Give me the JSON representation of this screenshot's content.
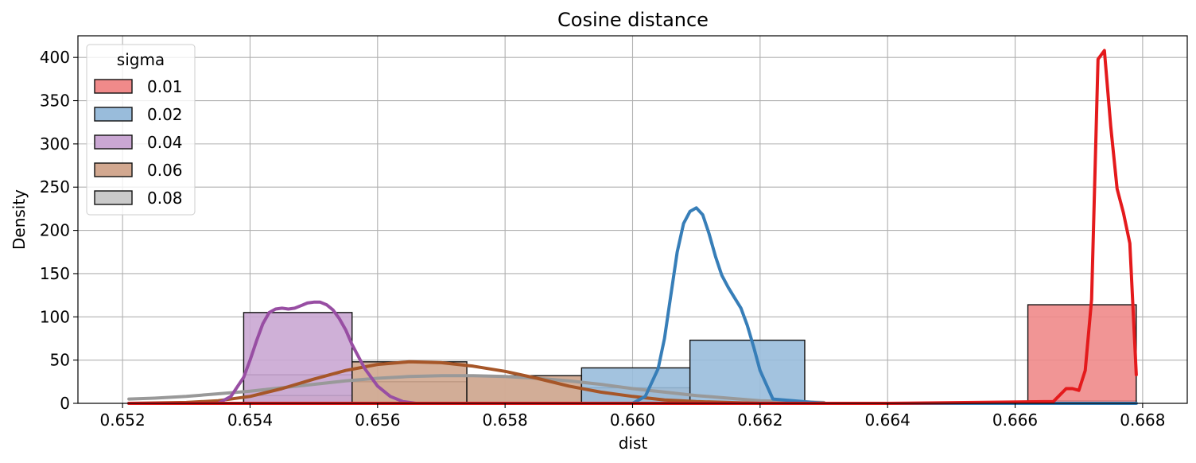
{
  "chart_data": {
    "type": "histogram",
    "title": "Cosine distance",
    "xlabel": "dist",
    "ylabel": "Density",
    "xlim": [
      0.6513,
      0.6687
    ],
    "ylim": [
      0,
      425
    ],
    "xticks": [
      0.652,
      0.654,
      0.656,
      0.658,
      0.66,
      0.662,
      0.664,
      0.666,
      0.668
    ],
    "xtick_labels": [
      "0.652",
      "0.654",
      "0.656",
      "0.658",
      "0.660",
      "0.662",
      "0.664",
      "0.666",
      "0.668"
    ],
    "yticks": [
      0,
      50,
      100,
      150,
      200,
      250,
      300,
      350,
      400
    ],
    "ytick_labels": [
      "0",
      "50",
      "100",
      "150",
      "200",
      "250",
      "300",
      "350",
      "400"
    ],
    "grid": true,
    "legend": {
      "title": "sigma",
      "placement": "upper-left"
    },
    "series": [
      {
        "name": "0.01",
        "fill_color": "#f08a8a",
        "line_color": "#e41a1c",
        "bins": [
          {
            "x0": 0.6662,
            "x1": 0.6679,
            "density": 114
          }
        ],
        "kde": {
          "x": [
            0.6521,
            0.664,
            0.6666,
            0.6668,
            0.6669,
            0.667,
            0.6671,
            0.6672,
            0.6673,
            0.6674,
            0.6675,
            0.6676,
            0.6677,
            0.6678,
            0.6679
          ],
          "y": [
            0,
            0,
            2,
            17,
            17,
            15,
            38,
            120,
            398,
            408,
            320,
            248,
            220,
            185,
            33
          ]
        }
      },
      {
        "name": "0.02",
        "fill_color": "#99bcdb",
        "line_color": "#377eb8",
        "bins": [
          {
            "x0": 0.6592,
            "x1": 0.6609,
            "density": 41
          },
          {
            "x0": 0.6609,
            "x1": 0.6627,
            "density": 73
          },
          {
            "x0": 0.6662,
            "x1": 0.6679,
            "density": 3
          }
        ],
        "kde": {
          "x": [
            0.6521,
            0.66,
            0.6602,
            0.6604,
            0.6605,
            0.6606,
            0.6607,
            0.6608,
            0.6609,
            0.661,
            0.6611,
            0.6612,
            0.6613,
            0.6614,
            0.6615,
            0.6616,
            0.6617,
            0.6618,
            0.6619,
            0.662,
            0.6622,
            0.663,
            0.6679
          ],
          "y": [
            0,
            0,
            8,
            40,
            75,
            125,
            175,
            208,
            222,
            226,
            218,
            196,
            170,
            148,
            134,
            122,
            110,
            90,
            65,
            38,
            5,
            0,
            0
          ]
        }
      },
      {
        "name": "0.04",
        "fill_color": "#caa7d3",
        "line_color": "#984ea3",
        "bins": [
          {
            "x0": 0.6539,
            "x1": 0.6556,
            "density": 105
          }
        ],
        "kde": {
          "x": [
            0.6521,
            0.6535,
            0.6537,
            0.6539,
            0.654,
            0.6541,
            0.6542,
            0.6543,
            0.6544,
            0.6545,
            0.6546,
            0.6547,
            0.6548,
            0.6549,
            0.655,
            0.6551,
            0.6552,
            0.6553,
            0.6554,
            0.6555,
            0.6556,
            0.6558,
            0.656,
            0.6562,
            0.6564,
            0.6566,
            0.657
          ],
          "y": [
            0,
            0,
            8,
            30,
            50,
            72,
            92,
            105,
            109,
            110,
            109,
            110,
            113,
            116,
            117,
            117,
            114,
            108,
            98,
            85,
            68,
            40,
            20,
            8,
            2,
            0,
            0
          ]
        }
      },
      {
        "name": "0.06",
        "fill_color": "#d2a890",
        "line_color": "#a65628",
        "bins": [
          {
            "x0": 0.6539,
            "x1": 0.6556,
            "density": 9
          },
          {
            "x0": 0.6556,
            "x1": 0.6574,
            "density": 48
          },
          {
            "x0": 0.6574,
            "x1": 0.6592,
            "density": 32
          },
          {
            "x0": 0.6592,
            "x1": 0.6609,
            "density": 18
          }
        ],
        "kde": {
          "x": [
            0.6521,
            0.653,
            0.6535,
            0.654,
            0.6545,
            0.655,
            0.6555,
            0.656,
            0.6565,
            0.657,
            0.6575,
            0.658,
            0.6585,
            0.659,
            0.6595,
            0.66,
            0.6605,
            0.661,
            0.6615,
            0.662,
            0.663
          ],
          "y": [
            0,
            1,
            3,
            8,
            17,
            28,
            38,
            45,
            48,
            47,
            43,
            37,
            29,
            20,
            13,
            8,
            4,
            2,
            1,
            0,
            0
          ]
        }
      },
      {
        "name": "0.08",
        "fill_color": "#cacaca",
        "line_color": "#999999",
        "bins": [
          {
            "x0": 0.6539,
            "x1": 0.6556,
            "density": 33
          },
          {
            "x0": 0.6556,
            "x1": 0.6574,
            "density": 25
          },
          {
            "x0": 0.6574,
            "x1": 0.6592,
            "density": 32
          }
        ],
        "kde": {
          "x": [
            0.6521,
            0.6525,
            0.653,
            0.6535,
            0.654,
            0.6545,
            0.655,
            0.6555,
            0.656,
            0.6565,
            0.657,
            0.6575,
            0.658,
            0.6585,
            0.659,
            0.6595,
            0.66,
            0.6605,
            0.661,
            0.6615,
            0.662,
            0.6625,
            0.663
          ],
          "y": [
            5,
            6,
            8,
            11,
            14,
            18,
            22,
            26,
            29,
            31,
            32,
            32,
            31,
            29,
            26,
            22,
            17,
            13,
            9,
            6,
            3,
            2,
            1
          ]
        }
      }
    ]
  }
}
